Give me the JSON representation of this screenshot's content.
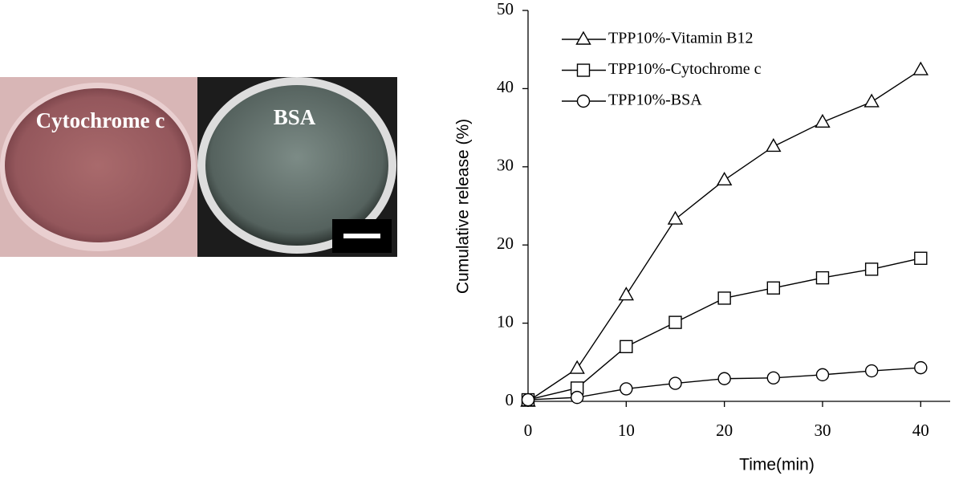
{
  "image": {
    "labels": [
      "Cytochrome c",
      "BSA"
    ]
  },
  "chart_data": {
    "type": "line",
    "x_label": "Time(min)",
    "y_label": "Cumulative release (%)",
    "x": [
      0,
      5,
      10,
      15,
      20,
      25,
      30,
      35,
      40
    ],
    "series": [
      {
        "name": "TPP10%-Vitamin B12",
        "color": "#000000",
        "marker": "triangle",
        "values": [
          0,
          4.2,
          13.6,
          23.3,
          28.3,
          32.6,
          35.7,
          38.3,
          42.4
        ]
      },
      {
        "name": "TPP10%-Cytochrome c",
        "color": "#000000",
        "marker": "square",
        "values": [
          0.2,
          1.7,
          7.0,
          10.1,
          13.2,
          14.5,
          15.8,
          16.9,
          18.3
        ]
      },
      {
        "name": "TPP10%-BSA",
        "color": "#000000",
        "marker": "circle",
        "values": [
          0.2,
          0.5,
          1.6,
          2.3,
          2.9,
          3.0,
          3.4,
          3.9,
          4.3
        ]
      }
    ],
    "xlim": [
      0,
      43
    ],
    "ylim": [
      0,
      50
    ],
    "xticks": [
      0,
      10,
      20,
      30,
      40
    ],
    "yticks": [
      0,
      10,
      20,
      30,
      40,
      50
    ],
    "legend": "top-left",
    "grid": false
  }
}
